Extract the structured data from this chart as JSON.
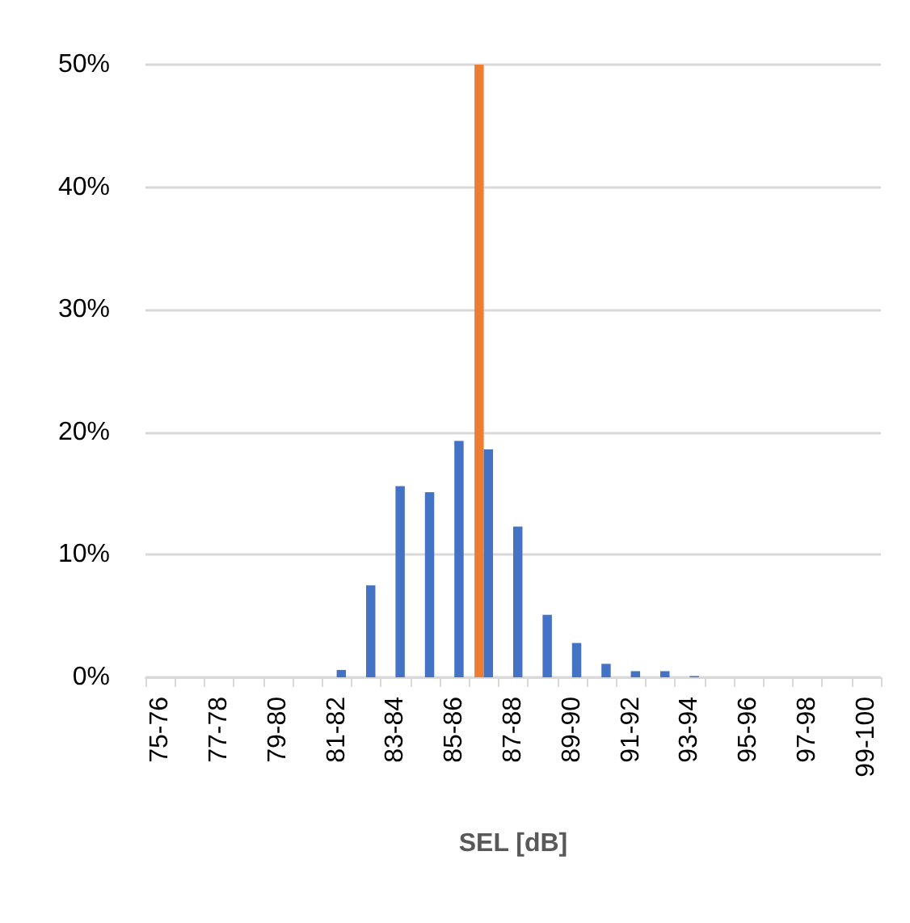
{
  "chart_data": {
    "type": "bar",
    "xlabel": "SEL [dB]",
    "categories": [
      "75-76",
      null,
      "77-78",
      null,
      "79-80",
      null,
      "81-82",
      null,
      "83-84",
      null,
      "85-86",
      null,
      "87-88",
      null,
      "89-90",
      null,
      "91-92",
      null,
      "93-94",
      null,
      "95-96",
      null,
      "97-98",
      null,
      "99-100"
    ],
    "series": [
      {
        "color": "#ed7d31",
        "values": [
          null,
          null,
          null,
          null,
          null,
          null,
          null,
          null,
          null,
          null,
          null,
          50,
          null,
          null,
          null,
          null,
          null,
          null,
          null,
          null,
          null,
          null,
          null,
          null,
          null
        ]
      },
      {
        "color": "#4472c4",
        "values": [
          0,
          0,
          0,
          0,
          0,
          0,
          0.6,
          7.5,
          15.6,
          15.1,
          19.3,
          18.6,
          12.3,
          5.1,
          2.8,
          1.1,
          0.5,
          0.5,
          0.1,
          0,
          0,
          0,
          0,
          0,
          0
        ]
      }
    ],
    "ylim": [
      0,
      50
    ],
    "yticks": [
      {
        "value": 0,
        "label": "0%"
      },
      {
        "value": 10,
        "label": "10%"
      },
      {
        "value": 20,
        "label": "20%"
      },
      {
        "value": 30,
        "label": "30%"
      },
      {
        "value": 40,
        "label": "40%"
      },
      {
        "value": 50,
        "label": "50%"
      }
    ],
    "grid": "y"
  }
}
